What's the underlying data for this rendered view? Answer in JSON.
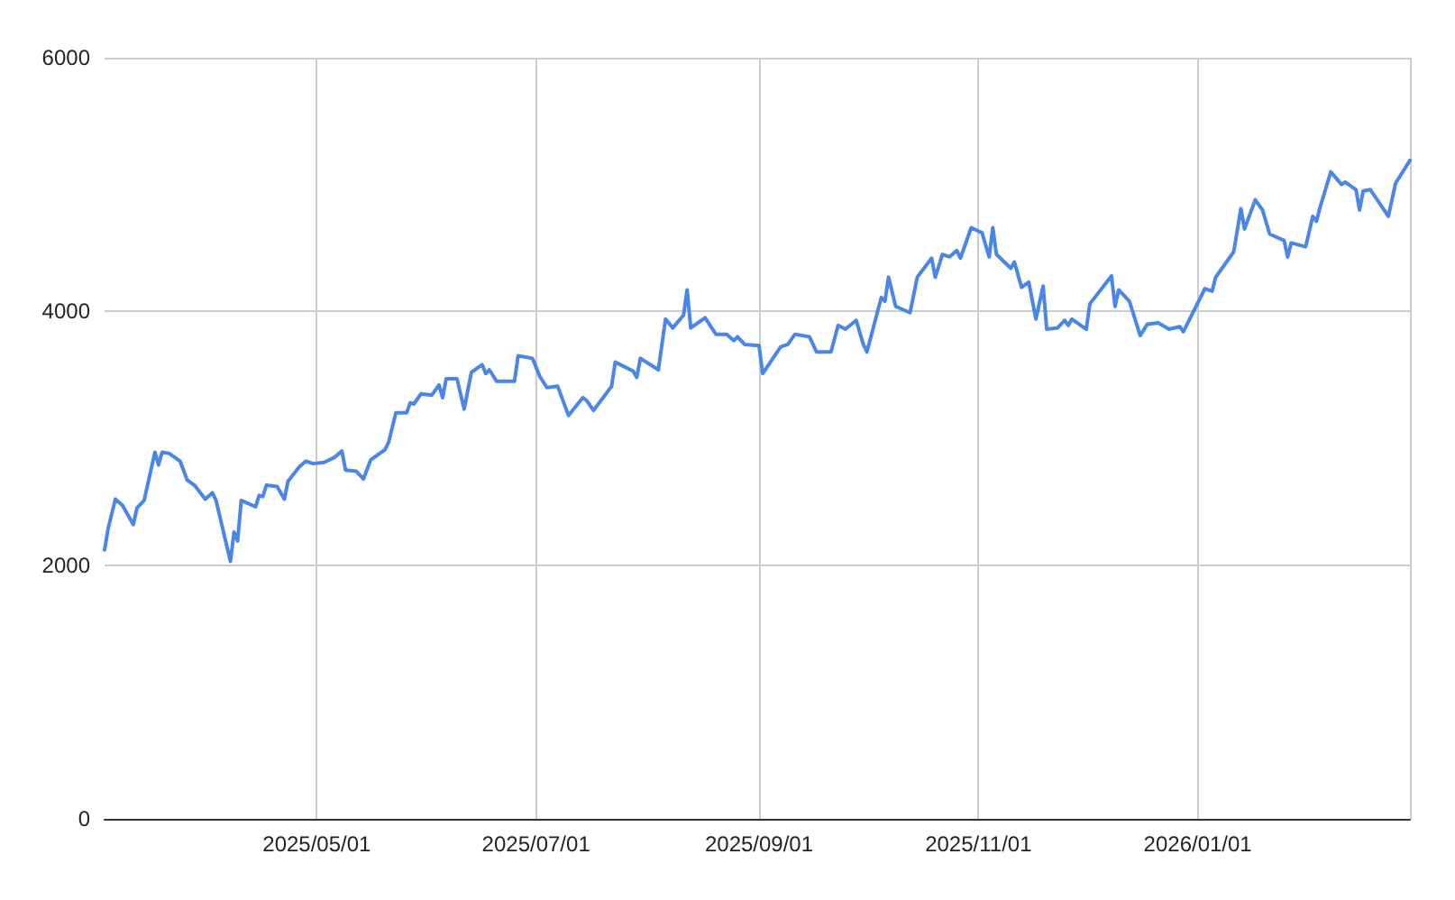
{
  "chart_data": {
    "type": "line",
    "x": [
      "2025-03-03",
      "2025-03-04",
      "2025-03-06",
      "2025-03-08",
      "2025-03-11",
      "2025-03-12",
      "2025-03-14",
      "2025-03-17",
      "2025-03-18",
      "2025-03-19",
      "2025-03-21",
      "2025-03-24",
      "2025-03-26",
      "2025-03-28",
      "2025-03-31",
      "2025-04-02",
      "2025-04-03",
      "2025-04-07",
      "2025-04-08",
      "2025-04-09",
      "2025-04-10",
      "2025-04-14",
      "2025-04-15",
      "2025-04-16",
      "2025-04-17",
      "2025-04-20",
      "2025-04-22",
      "2025-04-23",
      "2025-04-26",
      "2025-04-28",
      "2025-04-30",
      "2025-05-03",
      "2025-05-06",
      "2025-05-08",
      "2025-05-09",
      "2025-05-12",
      "2025-05-14",
      "2025-05-16",
      "2025-05-20",
      "2025-05-21",
      "2025-05-23",
      "2025-05-26",
      "2025-05-27",
      "2025-05-28",
      "2025-05-30",
      "2025-06-02",
      "2025-06-04",
      "2025-06-05",
      "2025-06-06",
      "2025-06-09",
      "2025-06-11",
      "2025-06-13",
      "2025-06-16",
      "2025-06-17",
      "2025-06-18",
      "2025-06-20",
      "2025-06-25",
      "2025-06-26",
      "2025-06-30",
      "2025-07-02",
      "2025-07-04",
      "2025-07-07",
      "2025-07-10",
      "2025-07-14",
      "2025-07-15",
      "2025-07-17",
      "2025-07-22",
      "2025-07-23",
      "2025-07-28",
      "2025-07-29",
      "2025-07-30",
      "2025-08-04",
      "2025-08-06",
      "2025-08-08",
      "2025-08-11",
      "2025-08-12",
      "2025-08-13",
      "2025-08-17",
      "2025-08-20",
      "2025-08-23",
      "2025-08-25",
      "2025-08-26",
      "2025-08-28",
      "2025-09-01",
      "2025-09-02",
      "2025-09-07",
      "2025-09-09",
      "2025-09-11",
      "2025-09-15",
      "2025-09-17",
      "2025-09-21",
      "2025-09-23",
      "2025-09-25",
      "2025-09-28",
      "2025-09-30",
      "2025-10-01",
      "2025-10-05",
      "2025-10-06",
      "2025-10-07",
      "2025-10-09",
      "2025-10-13",
      "2025-10-15",
      "2025-10-19",
      "2025-10-20",
      "2025-10-22",
      "2025-10-24",
      "2025-10-26",
      "2025-10-27",
      "2025-10-30",
      "2025-11-02",
      "2025-11-04",
      "2025-11-05",
      "2025-11-06",
      "2025-11-10",
      "2025-11-11",
      "2025-11-13",
      "2025-11-15",
      "2025-11-17",
      "2025-11-19",
      "2025-11-20",
      "2025-11-23",
      "2025-11-25",
      "2025-11-26",
      "2025-11-27",
      "2025-12-01",
      "2025-12-02",
      "2025-12-08",
      "2025-12-09",
      "2025-12-10",
      "2025-12-13",
      "2025-12-16",
      "2025-12-18",
      "2025-12-21",
      "2025-12-24",
      "2025-12-27",
      "2025-12-28",
      "2026-01-03",
      "2026-01-05",
      "2026-01-06",
      "2026-01-11",
      "2026-01-13",
      "2026-01-14",
      "2026-01-17",
      "2026-01-19",
      "2026-01-21",
      "2026-01-25",
      "2026-01-26",
      "2026-01-27",
      "2026-01-31",
      "2026-02-02",
      "2026-02-03",
      "2026-02-04",
      "2026-02-07",
      "2026-02-10",
      "2026-02-11",
      "2026-02-14",
      "2026-02-15",
      "2026-02-16",
      "2026-02-18",
      "2026-02-23",
      "2026-02-25",
      "2026-03-01"
    ],
    "series": [
      {
        "color": "#4a86e8",
        "values": [
          2120,
          2290,
          2520,
          2470,
          2320,
          2450,
          2510,
          2890,
          2790,
          2890,
          2880,
          2820,
          2670,
          2630,
          2520,
          2570,
          2510,
          2030,
          2260,
          2190,
          2510,
          2460,
          2550,
          2540,
          2630,
          2620,
          2520,
          2660,
          2770,
          2820,
          2800,
          2810,
          2850,
          2900,
          2750,
          2740,
          2680,
          2830,
          2910,
          2970,
          3200,
          3200,
          3280,
          3270,
          3350,
          3340,
          3420,
          3320,
          3470,
          3470,
          3230,
          3520,
          3580,
          3510,
          3540,
          3450,
          3450,
          3650,
          3630,
          3490,
          3400,
          3410,
          3180,
          3320,
          3300,
          3220,
          3410,
          3600,
          3530,
          3480,
          3630,
          3540,
          3940,
          3870,
          3970,
          4170,
          3870,
          3950,
          3820,
          3820,
          3770,
          3800,
          3740,
          3730,
          3510,
          3720,
          3740,
          3820,
          3800,
          3680,
          3680,
          3890,
          3860,
          3930,
          3740,
          3680,
          4110,
          4080,
          4270,
          4040,
          3990,
          4270,
          4420,
          4270,
          4450,
          4430,
          4480,
          4420,
          4660,
          4620,
          4430,
          4660,
          4450,
          4340,
          4390,
          4190,
          4230,
          3940,
          4200,
          3860,
          3870,
          3930,
          3890,
          3940,
          3860,
          4060,
          4280,
          4040,
          4170,
          4080,
          3810,
          3900,
          3910,
          3860,
          3880,
          3840,
          4180,
          4160,
          4270,
          4470,
          4810,
          4650,
          4880,
          4800,
          4610,
          4560,
          4430,
          4540,
          4510,
          4750,
          4710,
          4820,
          5100,
          5000,
          5020,
          4960,
          4800,
          4950,
          4960,
          4750,
          5010,
          5190
        ]
      }
    ],
    "xlim": [
      "2025-03-03",
      "2026-03-01"
    ],
    "xticks": [
      {
        "value": "2025-05-01",
        "label": "2025/05/01"
      },
      {
        "value": "2025-07-01",
        "label": "2025/07/01"
      },
      {
        "value": "2025-09-01",
        "label": "2025/09/01"
      },
      {
        "value": "2025-11-01",
        "label": "2025/11/01"
      },
      {
        "value": "2026-01-01",
        "label": "2026/01/01"
      },
      {
        "value": "2026-03-01",
        "label": null
      }
    ],
    "ylim": [
      0,
      6000
    ],
    "yticks": [
      0,
      2000,
      4000,
      6000
    ],
    "grid": true,
    "marker": "none",
    "line_style": "solid"
  }
}
